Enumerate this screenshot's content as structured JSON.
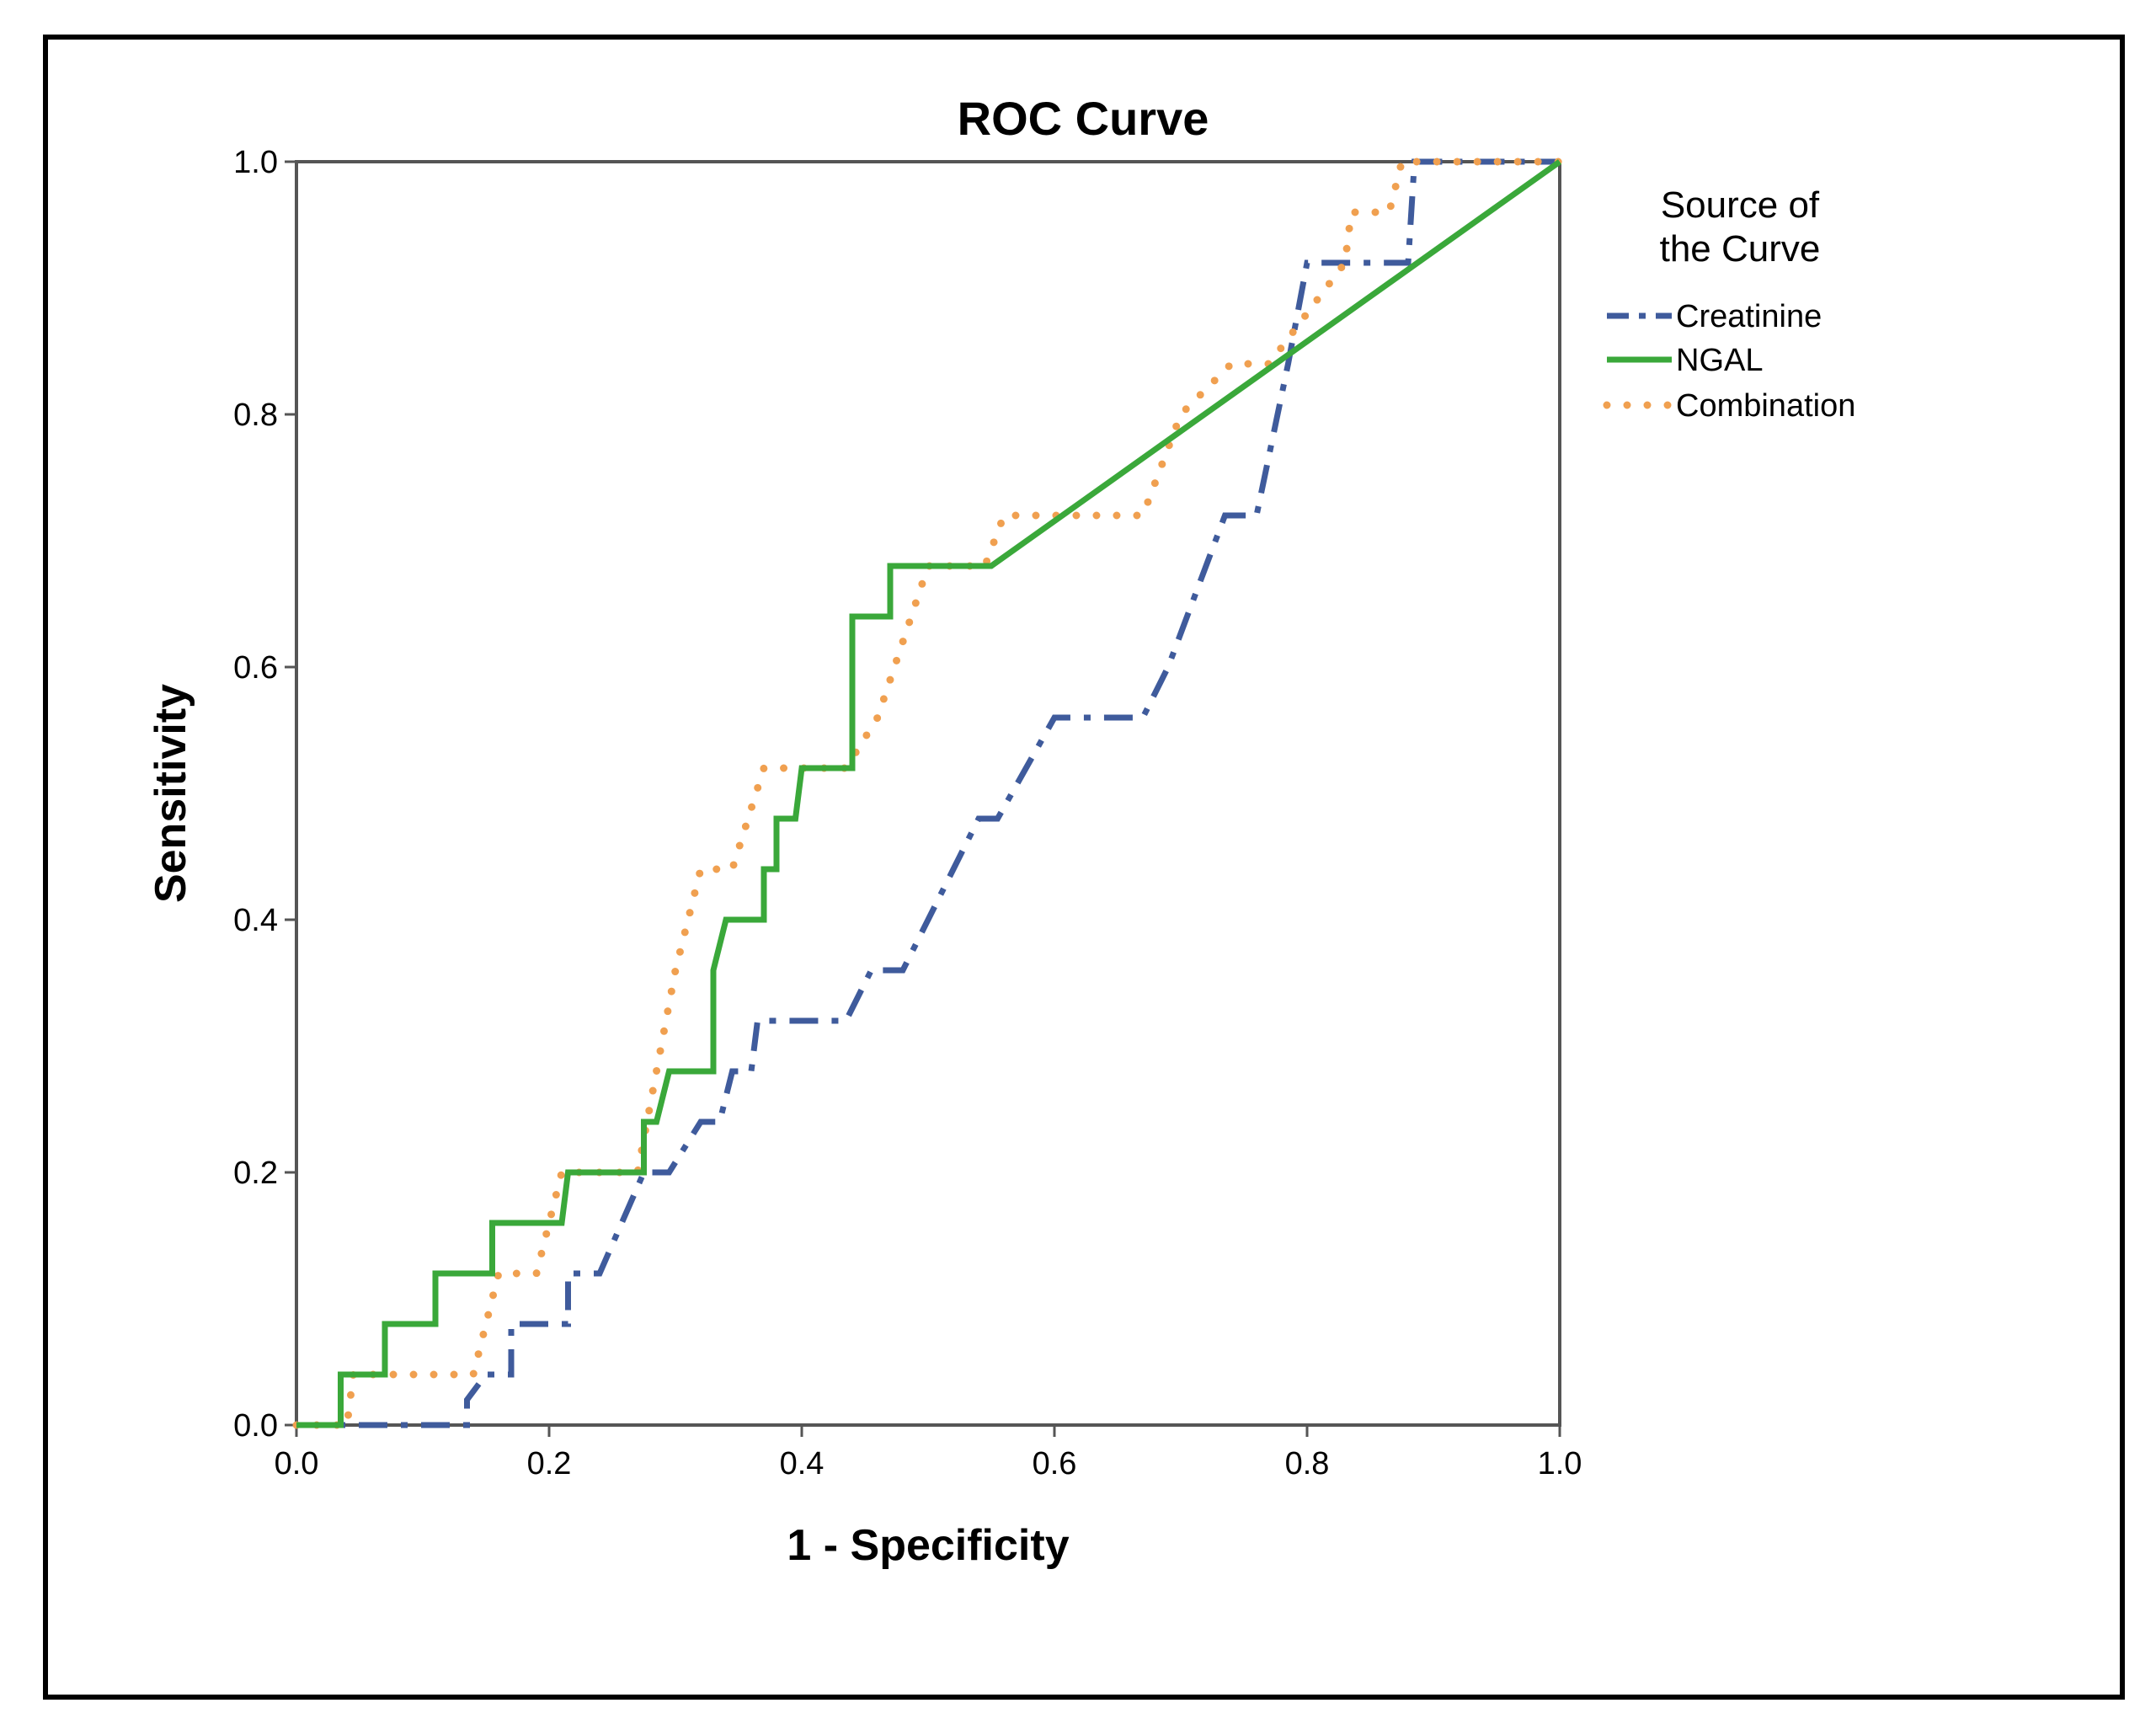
{
  "chart_data": {
    "type": "line",
    "title": "ROC Curve",
    "xlabel": "1 - Specificity",
    "ylabel": "Sensitivity",
    "xlim": [
      0,
      1
    ],
    "ylim": [
      0,
      1
    ],
    "xticks": [
      "0.0",
      "0.2",
      "0.4",
      "0.6",
      "0.8",
      "1.0"
    ],
    "yticks": [
      "0.0",
      "0.2",
      "0.4",
      "0.6",
      "0.8",
      "1.0"
    ],
    "grid": false,
    "legend": {
      "title_lines": [
        "Source of",
        "the Curve"
      ],
      "placement": "right"
    },
    "series": [
      {
        "name": "Creatinine",
        "style": "dash-dot",
        "color": "#3f5b9c",
        "points": [
          [
            0,
            0
          ],
          [
            0.035,
            0
          ],
          [
            0.135,
            0
          ],
          [
            0.135,
            0.02
          ],
          [
            0.15,
            0.04
          ],
          [
            0.17,
            0.04
          ],
          [
            0.17,
            0.08
          ],
          [
            0.215,
            0.08
          ],
          [
            0.215,
            0.12
          ],
          [
            0.24,
            0.12
          ],
          [
            0.275,
            0.2
          ],
          [
            0.295,
            0.2
          ],
          [
            0.32,
            0.24
          ],
          [
            0.335,
            0.24
          ],
          [
            0.345,
            0.28
          ],
          [
            0.36,
            0.28
          ],
          [
            0.365,
            0.32
          ],
          [
            0.435,
            0.32
          ],
          [
            0.455,
            0.36
          ],
          [
            0.48,
            0.36
          ],
          [
            0.52,
            0.44
          ],
          [
            0.54,
            0.48
          ],
          [
            0.555,
            0.48
          ],
          [
            0.6,
            0.56
          ],
          [
            0.67,
            0.56
          ],
          [
            0.69,
            0.6
          ],
          [
            0.735,
            0.72
          ],
          [
            0.76,
            0.72
          ],
          [
            0.785,
            0.84
          ],
          [
            0.8,
            0.92
          ],
          [
            0.88,
            0.92
          ],
          [
            0.885,
            1.0
          ],
          [
            1,
            1
          ]
        ]
      },
      {
        "name": "NGAL",
        "style": "solid",
        "color": "#3aa83a",
        "points": [
          [
            0,
            0
          ],
          [
            0.035,
            0
          ],
          [
            0.035,
            0.04
          ],
          [
            0.07,
            0.04
          ],
          [
            0.07,
            0.08
          ],
          [
            0.11,
            0.08
          ],
          [
            0.11,
            0.12
          ],
          [
            0.155,
            0.12
          ],
          [
            0.155,
            0.16
          ],
          [
            0.21,
            0.16
          ],
          [
            0.215,
            0.2
          ],
          [
            0.275,
            0.2
          ],
          [
            0.275,
            0.24
          ],
          [
            0.285,
            0.24
          ],
          [
            0.295,
            0.28
          ],
          [
            0.33,
            0.28
          ],
          [
            0.33,
            0.36
          ],
          [
            0.34,
            0.4
          ],
          [
            0.37,
            0.4
          ],
          [
            0.37,
            0.44
          ],
          [
            0.38,
            0.44
          ],
          [
            0.38,
            0.48
          ],
          [
            0.395,
            0.48
          ],
          [
            0.4,
            0.52
          ],
          [
            0.44,
            0.52
          ],
          [
            0.44,
            0.64
          ],
          [
            0.47,
            0.64
          ],
          [
            0.47,
            0.68
          ],
          [
            0.55,
            0.68
          ],
          [
            1,
            1
          ]
        ]
      },
      {
        "name": "Combination",
        "style": "dotted",
        "color": "#f0a050",
        "points": [
          [
            0,
            0
          ],
          [
            0.04,
            0
          ],
          [
            0.045,
            0.04
          ],
          [
            0.14,
            0.04
          ],
          [
            0.16,
            0.12
          ],
          [
            0.19,
            0.12
          ],
          [
            0.21,
            0.2
          ],
          [
            0.27,
            0.2
          ],
          [
            0.3,
            0.36
          ],
          [
            0.32,
            0.44
          ],
          [
            0.345,
            0.44
          ],
          [
            0.37,
            0.52
          ],
          [
            0.435,
            0.52
          ],
          [
            0.46,
            0.56
          ],
          [
            0.5,
            0.68
          ],
          [
            0.545,
            0.68
          ],
          [
            0.56,
            0.72
          ],
          [
            0.67,
            0.72
          ],
          [
            0.7,
            0.8
          ],
          [
            0.74,
            0.84
          ],
          [
            0.77,
            0.84
          ],
          [
            0.8,
            0.88
          ],
          [
            0.83,
            0.92
          ],
          [
            0.835,
            0.96
          ],
          [
            0.865,
            0.96
          ],
          [
            0.875,
            1.0
          ],
          [
            1,
            1
          ]
        ]
      }
    ]
  }
}
